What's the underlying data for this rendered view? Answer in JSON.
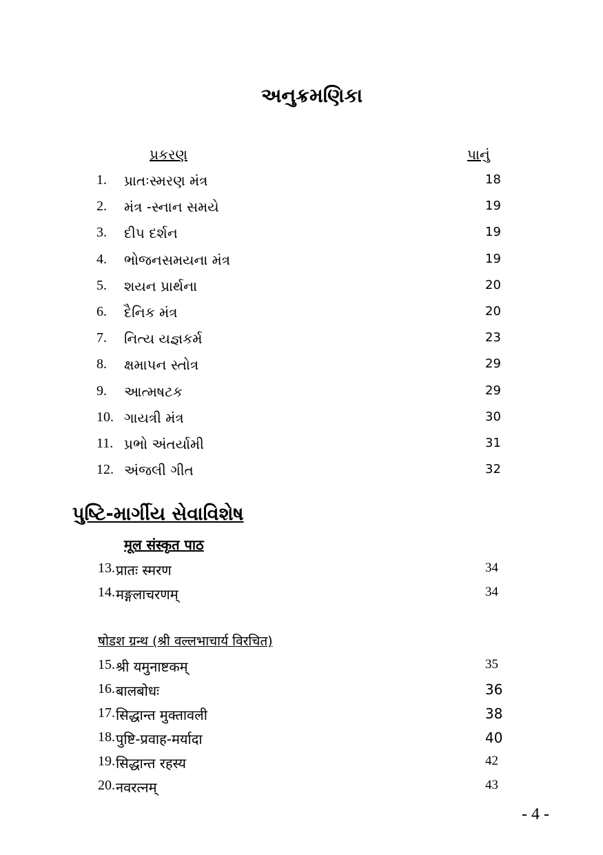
{
  "title": "અનુક્રમણિકા",
  "headers": {
    "chapter": "પ્રકરણ",
    "page": "પાનું"
  },
  "gujarati_items": [
    {
      "num": "1.",
      "text": "પ્રાતઃસ્મરણ મંત્ર",
      "page": "18"
    },
    {
      "num": "2.",
      "text": "મંત્ર  -સ્નાન સમયે",
      "page": "19"
    },
    {
      "num": "3.",
      "text": "દીપ દર્શન",
      "page": "19"
    },
    {
      "num": "4.",
      "text": "ભોજનસમયના મંત્ર",
      "page": "19"
    },
    {
      "num": "5.",
      "text": "શયન પ્રાર્થના",
      "page": "20"
    },
    {
      "num": "6.",
      "text": "દૈનિક મંત્ર",
      "page": "20"
    },
    {
      "num": "7.",
      "text": "નિત્ય યજ્ઞકર્મ",
      "page": "23"
    },
    {
      "num": "8.",
      "text": "ક્ષમાપન સ્તોત્ર",
      "page": "29"
    },
    {
      "num": "9.",
      "text": "આત્મષટક",
      "page": "29"
    },
    {
      "num": "10.",
      "text": "ગાયત્રી મંત્ર",
      "page": "30"
    },
    {
      "num": "11.",
      "text": "પ્રભો અંતર્યામી",
      "page": "31"
    },
    {
      "num": "12.",
      "text": "અંજલી ગીત",
      "page": "32"
    }
  ],
  "section_title": "પુષ્ટિ-માર્ગીય સેવાવિશેષ",
  "subsection1": "मूल संस्कृत पाठ",
  "sanskrit_items": [
    {
      "num": "13.",
      "text": "प्रातः स्मरण",
      "page": "34"
    },
    {
      "num": "14.",
      "text": "मङ्गलाचरणम्",
      "page": "34"
    }
  ],
  "subsection2": "षोडश ग्रन्थ (श्री वल्लभाचार्य विरचित)",
  "shodash_items": [
    {
      "num": "15.",
      "text": "श्री यमुनाष्टकम्",
      "page": "35"
    },
    {
      "num": "16.",
      "text": "बालबोधः",
      "page": "36"
    },
    {
      "num": "17.",
      "text": "सिद्धान्त मुक्तावली",
      "page": "38"
    },
    {
      "num": "18.",
      "text": "पुष्टि-प्रवाह-मर्यादा",
      "page": "40"
    },
    {
      "num": "19.",
      "text": "सिद्धान्त रहस्य",
      "page": "42"
    },
    {
      "num": "20.",
      "text": "नवरत्नम्",
      "page": "43"
    }
  ],
  "page_number": "- 4 -"
}
